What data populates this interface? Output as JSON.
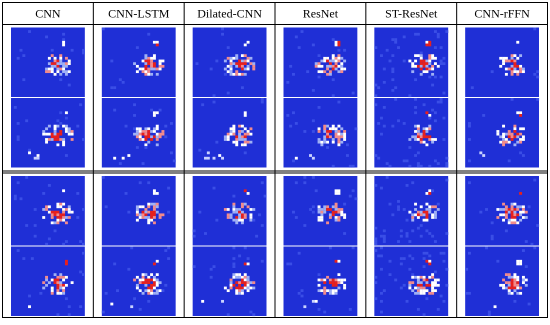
{
  "table": {
    "headers": [
      "CNN",
      "CNN-LSTM",
      "Dilated-CNN",
      "ResNet",
      "ST-ResNet",
      "CNN-rFFN"
    ]
  }
}
